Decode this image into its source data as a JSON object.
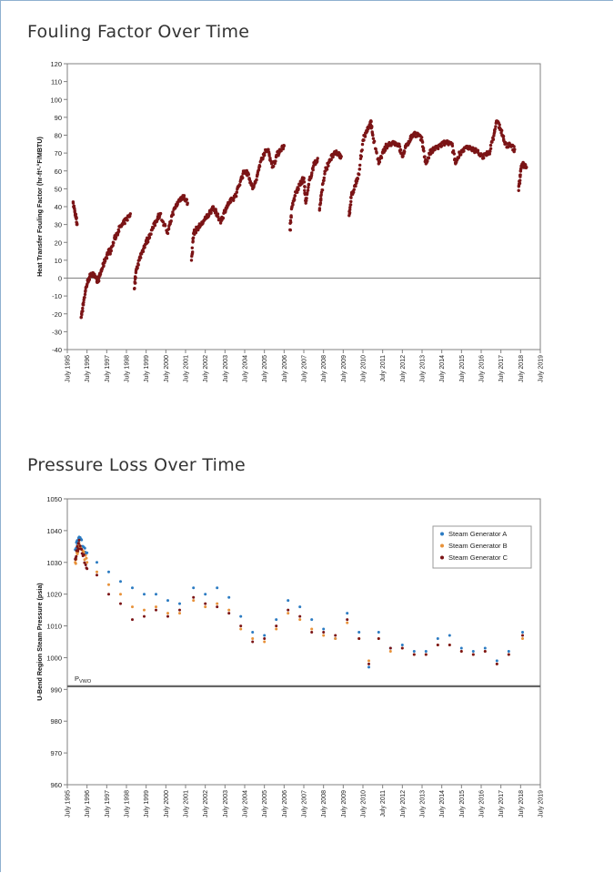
{
  "page": {
    "title1": "Fouling Factor Over Time",
    "title2": "Pressure Loss Over Time"
  },
  "colors": {
    "marker_dark_red": "#7b1416",
    "marker_blue": "#2b7bc2",
    "marker_orange": "#e8923a",
    "axis": "#808080",
    "pwo_line": "#666666"
  },
  "chart_data": [
    {
      "type": "scatter",
      "title": "",
      "xlabel": "",
      "ylabel": "Heat Transfer Fouling Factor (hr-ft²-°F/MBTU)",
      "ylim": [
        -40,
        120
      ],
      "ytick_step": 10,
      "xtick_labels": [
        "July 1995",
        "July 1996",
        "July 1997",
        "July 1998",
        "July 1999",
        "July 2000",
        "July 2001",
        "July 2002",
        "July 2003",
        "July 2004",
        "July 2005",
        "July 2006",
        "July 2007",
        "July 2008",
        "July 2009",
        "July 2010",
        "July 2011",
        "July 2012",
        "July 2013",
        "July 2014",
        "July 2015",
        "July 2016",
        "July 2017",
        "July 2018",
        "July 2019"
      ],
      "xlim": [
        1995.5,
        2019.5
      ],
      "reference_line_y": 0,
      "series": [
        {
          "color": "#7b1416",
          "points": [
            [
              1995.8,
              42
            ],
            [
              1995.9,
              36
            ],
            [
              1996.0,
              30
            ],
            [
              1996.2,
              -22
            ],
            [
              1996.3,
              -15
            ],
            [
              1996.45,
              -5
            ],
            [
              1996.6,
              0
            ],
            [
              1996.8,
              3
            ],
            [
              1997.0,
              -2
            ],
            [
              1997.1,
              0
            ],
            [
              1997.25,
              5
            ],
            [
              1997.4,
              10
            ],
            [
              1997.6,
              15
            ],
            [
              1997.7,
              15
            ],
            [
              1997.9,
              22
            ],
            [
              1998.1,
              27
            ],
            [
              1998.3,
              30
            ],
            [
              1998.5,
              33
            ],
            [
              1998.7,
              36
            ],
            [
              1998.9,
              -6
            ],
            [
              1999.0,
              5
            ],
            [
              1999.2,
              12
            ],
            [
              1999.4,
              18
            ],
            [
              1999.6,
              22
            ],
            [
              1999.8,
              27
            ],
            [
              2000.0,
              32
            ],
            [
              2000.2,
              36
            ],
            [
              2000.6,
              25
            ],
            [
              2000.8,
              35
            ],
            [
              2001.0,
              40
            ],
            [
              2001.2,
              44
            ],
            [
              2001.4,
              46
            ],
            [
              2001.6,
              42
            ],
            [
              2001.8,
              10
            ],
            [
              2001.9,
              25
            ],
            [
              2002.1,
              28
            ],
            [
              2002.3,
              30
            ],
            [
              2002.5,
              33
            ],
            [
              2002.7,
              36
            ],
            [
              2002.9,
              40
            ],
            [
              2003.1,
              35
            ],
            [
              2003.3,
              32
            ],
            [
              2003.5,
              38
            ],
            [
              2003.7,
              42
            ],
            [
              2003.9,
              44
            ],
            [
              2004.1,
              48
            ],
            [
              2004.3,
              55
            ],
            [
              2004.5,
              60
            ],
            [
              2004.7,
              58
            ],
            [
              2004.9,
              50
            ],
            [
              2005.1,
              55
            ],
            [
              2005.3,
              65
            ],
            [
              2005.5,
              70
            ],
            [
              2005.7,
              72
            ],
            [
              2005.9,
              62
            ],
            [
              2006.1,
              68
            ],
            [
              2006.3,
              72
            ],
            [
              2006.5,
              74
            ],
            [
              2006.8,
              27
            ],
            [
              2006.9,
              40
            ],
            [
              2007.1,
              48
            ],
            [
              2007.3,
              52
            ],
            [
              2007.5,
              56
            ],
            [
              2007.6,
              42
            ],
            [
              2007.8,
              55
            ],
            [
              2008.0,
              63
            ],
            [
              2008.2,
              67
            ],
            [
              2008.3,
              38
            ],
            [
              2008.4,
              48
            ],
            [
              2008.6,
              60
            ],
            [
              2008.8,
              66
            ],
            [
              2009.0,
              69
            ],
            [
              2009.2,
              70
            ],
            [
              2009.4,
              68
            ],
            [
              2009.8,
              35
            ],
            [
              2009.9,
              45
            ],
            [
              2010.1,
              52
            ],
            [
              2010.3,
              58
            ],
            [
              2010.5,
              77
            ],
            [
              2010.7,
              82
            ],
            [
              2010.9,
              88
            ],
            [
              2011.0,
              80
            ],
            [
              2011.3,
              64
            ],
            [
              2011.5,
              70
            ],
            [
              2011.7,
              74
            ],
            [
              2012.0,
              76
            ],
            [
              2012.3,
              75
            ],
            [
              2012.5,
              68
            ],
            [
              2012.7,
              74
            ],
            [
              2012.9,
              78
            ],
            [
              2013.1,
              81
            ],
            [
              2013.3,
              80
            ],
            [
              2013.5,
              77
            ],
            [
              2013.7,
              64
            ],
            [
              2013.9,
              70
            ],
            [
              2014.1,
              72
            ],
            [
              2014.4,
              74
            ],
            [
              2014.7,
              76
            ],
            [
              2015.0,
              75
            ],
            [
              2015.2,
              64
            ],
            [
              2015.4,
              70
            ],
            [
              2015.7,
              73
            ],
            [
              2016.0,
              72
            ],
            [
              2016.3,
              71
            ],
            [
              2016.6,
              68
            ],
            [
              2016.9,
              70
            ],
            [
              2017.1,
              78
            ],
            [
              2017.3,
              88
            ],
            [
              2017.5,
              83
            ],
            [
              2017.7,
              75
            ],
            [
              2018.0,
              74
            ],
            [
              2018.2,
              72
            ],
            [
              2018.4,
              49
            ],
            [
              2018.5,
              60
            ],
            [
              2018.6,
              64
            ],
            [
              2018.8,
              62
            ]
          ]
        }
      ]
    },
    {
      "type": "scatter",
      "title": "",
      "xlabel": "",
      "ylabel": "U-Bend Region Steam Pressure (psia)",
      "ylim": [
        960,
        1050
      ],
      "ytick_step": 10,
      "xtick_labels": [
        "July 1995",
        "July 1996",
        "July 1997",
        "July 1998",
        "July 1999",
        "July 2000",
        "July 2001",
        "July 2002",
        "July 2003",
        "July 2004",
        "July 2005",
        "July 2006",
        "July 2007",
        "July 2008",
        "July 2009",
        "July 2010",
        "July 2011",
        "July 2012",
        "July 2013",
        "July 2014",
        "July 2015",
        "July 2016",
        "July 2017",
        "July 2018",
        "July 2019"
      ],
      "xlim": [
        1995.5,
        2019.5
      ],
      "reference_line": {
        "y": 991,
        "label": "P",
        "label_sub": "VWO"
      },
      "legend_position": "top-right",
      "series": [
        {
          "name": "Steam Generator A",
          "color": "#2b7bc2",
          "points": [
            [
              1995.9,
              1034
            ],
            [
              1996.1,
              1038
            ],
            [
              1996.5,
              1033
            ],
            [
              1997.0,
              1030
            ],
            [
              1997.6,
              1027
            ],
            [
              1998.2,
              1024
            ],
            [
              1998.8,
              1022
            ],
            [
              1999.4,
              1020
            ],
            [
              2000.0,
              1020
            ],
            [
              2000.6,
              1018
            ],
            [
              2001.2,
              1017
            ],
            [
              2001.9,
              1022
            ],
            [
              2002.5,
              1020
            ],
            [
              2003.1,
              1022
            ],
            [
              2003.7,
              1019
            ],
            [
              2004.3,
              1013
            ],
            [
              2004.9,
              1008
            ],
            [
              2005.5,
              1007
            ],
            [
              2006.1,
              1012
            ],
            [
              2006.7,
              1018
            ],
            [
              2007.3,
              1016
            ],
            [
              2007.9,
              1012
            ],
            [
              2008.5,
              1009
            ],
            [
              2009.1,
              1006
            ],
            [
              2009.7,
              1014
            ],
            [
              2010.3,
              1008
            ],
            [
              2010.8,
              997
            ],
            [
              2011.3,
              1008
            ],
            [
              2011.9,
              1003
            ],
            [
              2012.5,
              1004
            ],
            [
              2013.1,
              1002
            ],
            [
              2013.7,
              1002
            ],
            [
              2014.3,
              1006
            ],
            [
              2014.9,
              1007
            ],
            [
              2015.5,
              1003
            ],
            [
              2016.1,
              1002
            ],
            [
              2016.7,
              1003
            ],
            [
              2017.3,
              999
            ],
            [
              2017.9,
              1002
            ],
            [
              2018.6,
              1008
            ]
          ]
        },
        {
          "name": "Steam Generator B",
          "color": "#e8923a",
          "points": [
            [
              1995.9,
              1030
            ],
            [
              1996.1,
              1036
            ],
            [
              1996.5,
              1030
            ],
            [
              1997.0,
              1027
            ],
            [
              1997.6,
              1023
            ],
            [
              1998.2,
              1020
            ],
            [
              1998.8,
              1016
            ],
            [
              1999.4,
              1015
            ],
            [
              2000.0,
              1016
            ],
            [
              2000.6,
              1014
            ],
            [
              2001.2,
              1014
            ],
            [
              2001.9,
              1018
            ],
            [
              2002.5,
              1016
            ],
            [
              2003.1,
              1017
            ],
            [
              2003.7,
              1015
            ],
            [
              2004.3,
              1009
            ],
            [
              2004.9,
              1006
            ],
            [
              2005.5,
              1005
            ],
            [
              2006.1,
              1009
            ],
            [
              2006.7,
              1014
            ],
            [
              2007.3,
              1012
            ],
            [
              2007.9,
              1009
            ],
            [
              2008.5,
              1007
            ],
            [
              2009.1,
              1006
            ],
            [
              2009.7,
              1011
            ],
            [
              2010.3,
              1006
            ],
            [
              2010.8,
              999
            ],
            [
              2011.3,
              1006
            ],
            [
              2011.9,
              1002
            ],
            [
              2012.5,
              1003
            ],
            [
              2013.1,
              1001
            ],
            [
              2013.7,
              1001
            ],
            [
              2014.3,
              1004
            ],
            [
              2014.9,
              1004
            ],
            [
              2015.5,
              1002
            ],
            [
              2016.1,
              1001
            ],
            [
              2016.7,
              1002
            ],
            [
              2017.3,
              998
            ],
            [
              2017.9,
              1001
            ],
            [
              2018.6,
              1006
            ]
          ]
        },
        {
          "name": "Steam Generator C",
          "color": "#7b1416",
          "points": [
            [
              1995.9,
              1031
            ],
            [
              1996.1,
              1037
            ],
            [
              1996.5,
              1028
            ],
            [
              1997.0,
              1026
            ],
            [
              1997.6,
              1020
            ],
            [
              1998.2,
              1017
            ],
            [
              1998.8,
              1012
            ],
            [
              1999.4,
              1013
            ],
            [
              2000.0,
              1015
            ],
            [
              2000.6,
              1013
            ],
            [
              2001.2,
              1015
            ],
            [
              2001.9,
              1019
            ],
            [
              2002.5,
              1017
            ],
            [
              2003.1,
              1016
            ],
            [
              2003.7,
              1014
            ],
            [
              2004.3,
              1010
            ],
            [
              2004.9,
              1005
            ],
            [
              2005.5,
              1006
            ],
            [
              2006.1,
              1010
            ],
            [
              2006.7,
              1015
            ],
            [
              2007.3,
              1013
            ],
            [
              2007.9,
              1008
            ],
            [
              2008.5,
              1008
            ],
            [
              2009.1,
              1007
            ],
            [
              2009.7,
              1012
            ],
            [
              2010.3,
              1006
            ],
            [
              2010.8,
              998
            ],
            [
              2011.3,
              1006
            ],
            [
              2011.9,
              1003
            ],
            [
              2012.5,
              1003
            ],
            [
              2013.1,
              1001
            ],
            [
              2013.7,
              1001
            ],
            [
              2014.3,
              1004
            ],
            [
              2014.9,
              1004
            ],
            [
              2015.5,
              1002
            ],
            [
              2016.1,
              1001
            ],
            [
              2016.7,
              1002
            ],
            [
              2017.3,
              998
            ],
            [
              2017.9,
              1001
            ],
            [
              2018.6,
              1007
            ]
          ]
        }
      ]
    }
  ]
}
